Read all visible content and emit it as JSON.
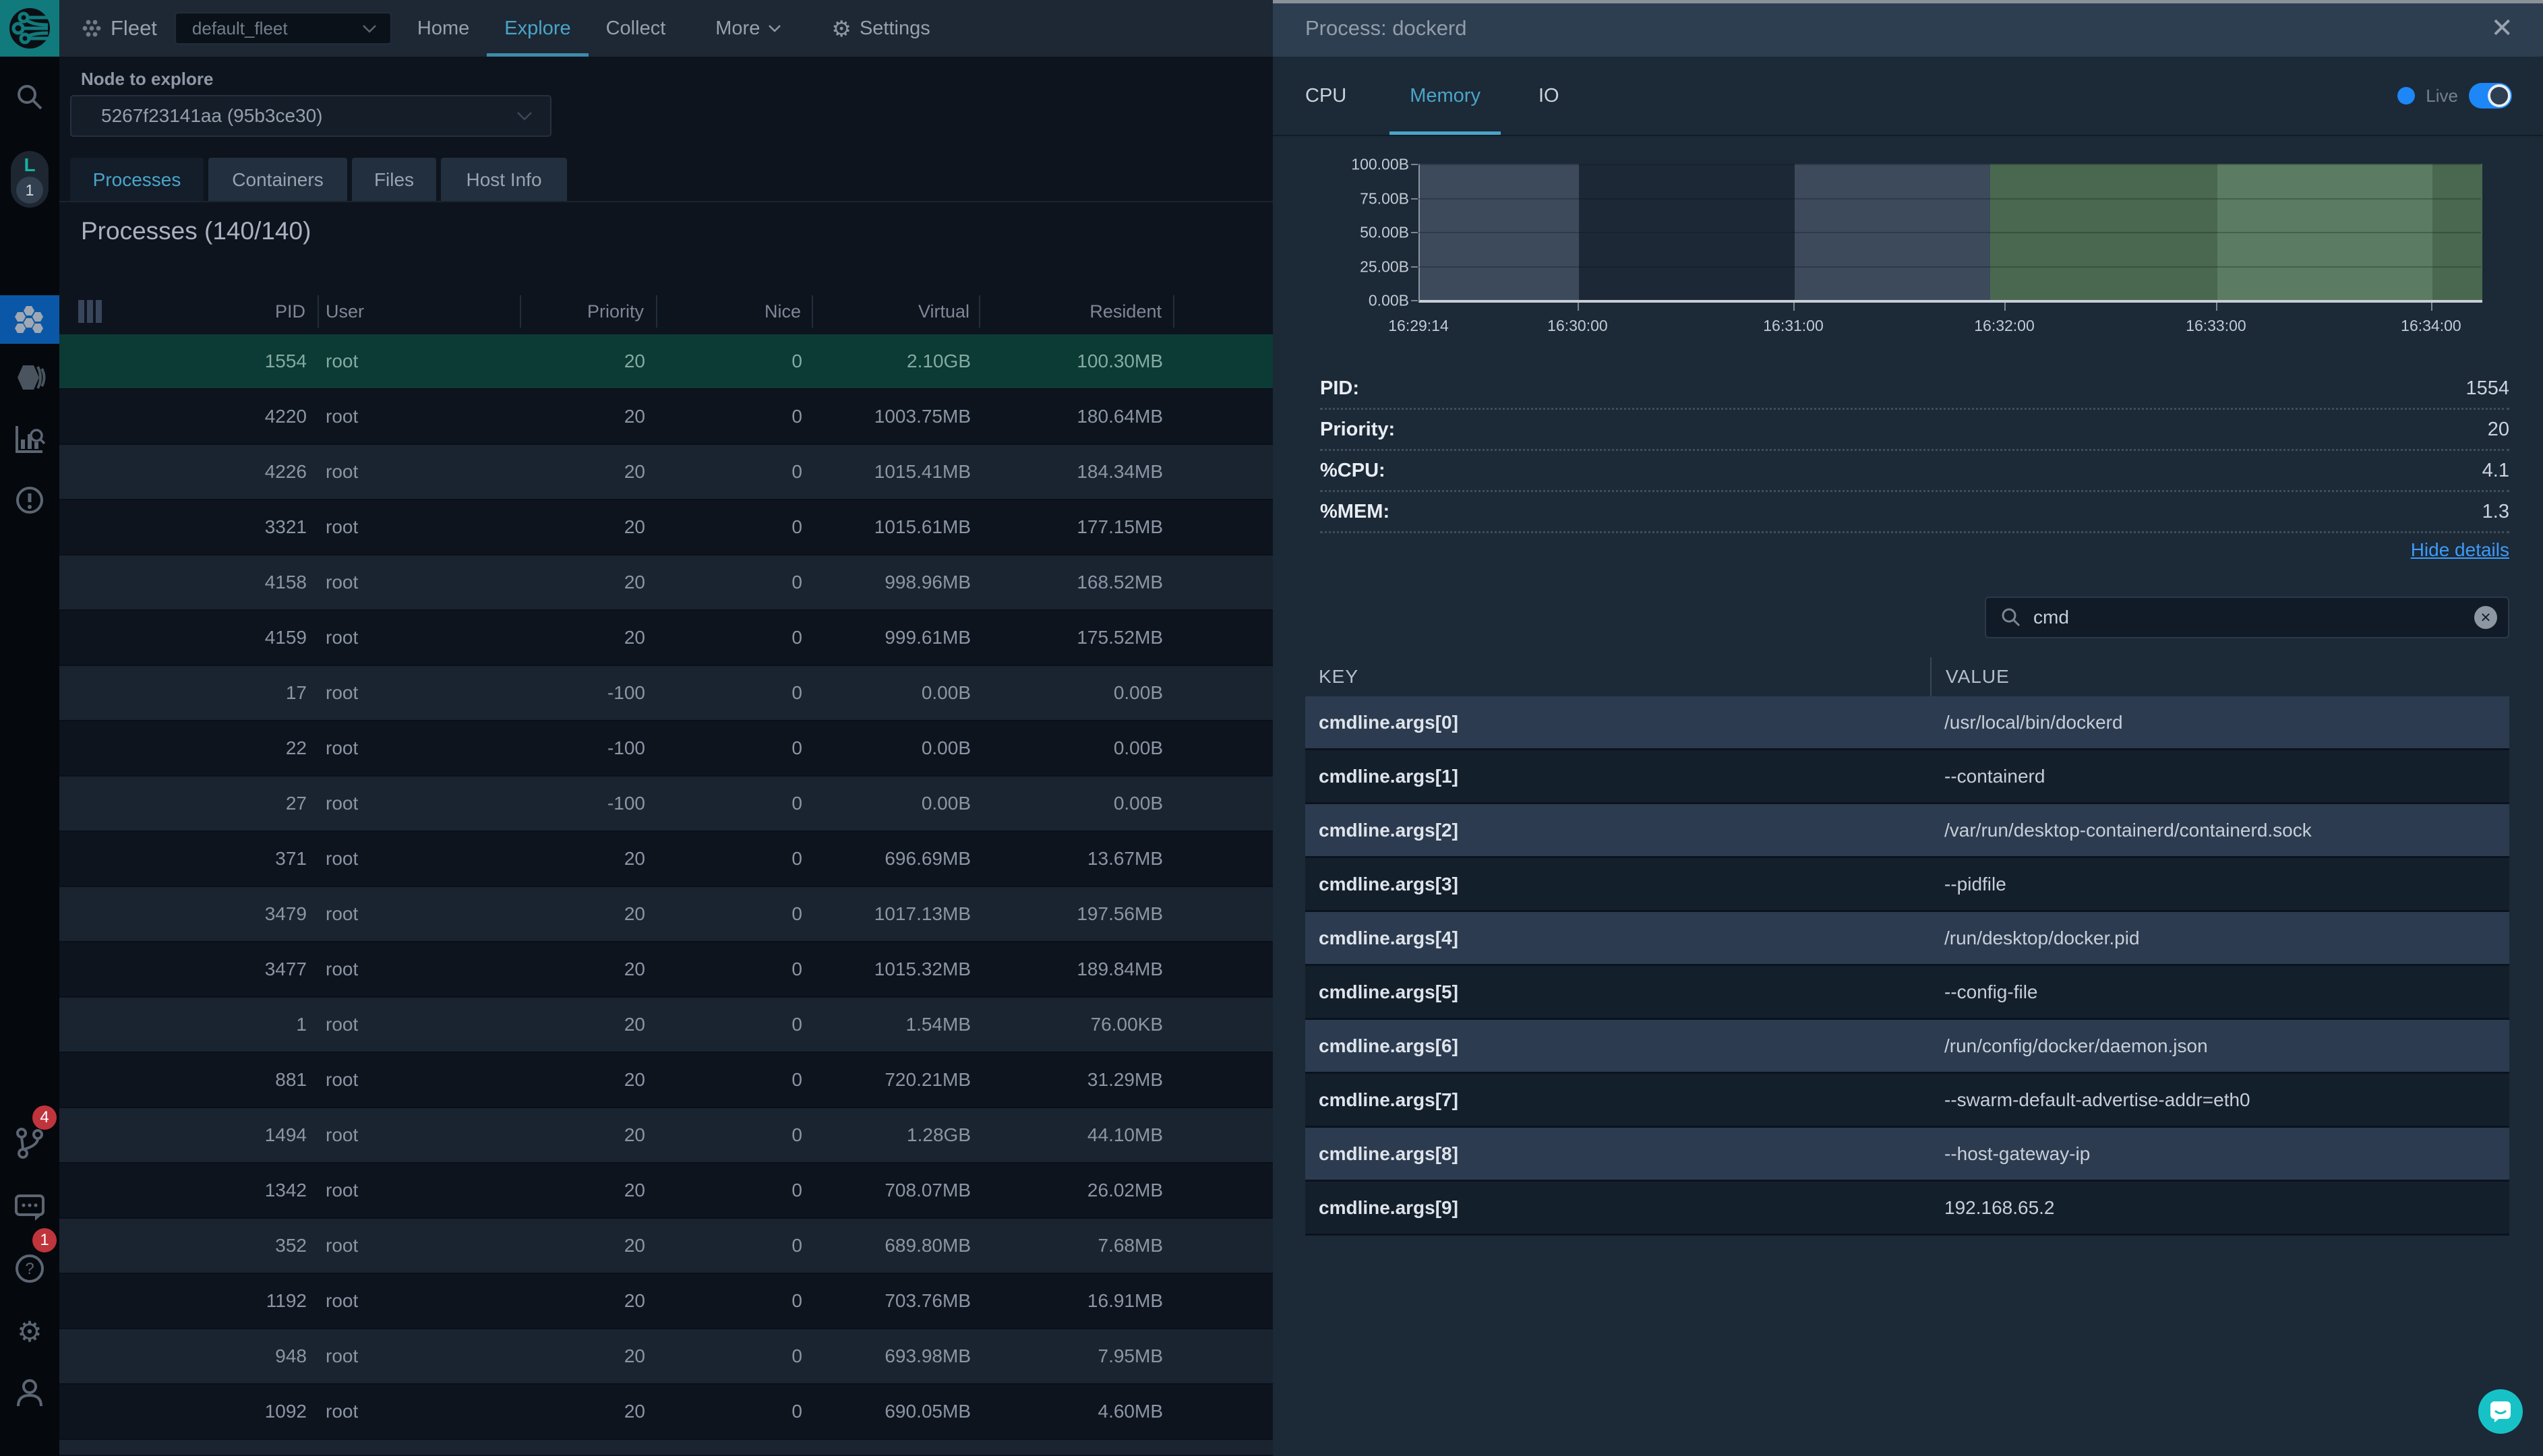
{
  "header": {
    "product": "Fleet",
    "fleet_select_value": "default_fleet",
    "nav": {
      "home": "Home",
      "explore": "Explore",
      "collect": "Collect",
      "more": "More",
      "settings": "Settings"
    }
  },
  "sidebar": {
    "avatar_letter": "L",
    "avatar_count": "1",
    "pipeline_badge": "4",
    "help_badge": "1"
  },
  "explorer": {
    "node_label": "Node to explore",
    "node_value": "5267f23141aa (95b3ce30)",
    "tabs": [
      "Processes",
      "Containers",
      "Files",
      "Host Info"
    ],
    "active_tab": "Processes",
    "title": "Processes (140/140)",
    "columns": [
      "PID",
      "User",
      "Priority",
      "Nice",
      "Virtual",
      "Resident"
    ],
    "selected_pid": "1554",
    "rows": [
      [
        "1554",
        "root",
        "20",
        "0",
        "2.10GB",
        "100.30MB"
      ],
      [
        "4220",
        "root",
        "20",
        "0",
        "1003.75MB",
        "180.64MB"
      ],
      [
        "4226",
        "root",
        "20",
        "0",
        "1015.41MB",
        "184.34MB"
      ],
      [
        "3321",
        "root",
        "20",
        "0",
        "1015.61MB",
        "177.15MB"
      ],
      [
        "4158",
        "root",
        "20",
        "0",
        "998.96MB",
        "168.52MB"
      ],
      [
        "4159",
        "root",
        "20",
        "0",
        "999.61MB",
        "175.52MB"
      ],
      [
        "17",
        "root",
        "-100",
        "0",
        "0.00B",
        "0.00B"
      ],
      [
        "22",
        "root",
        "-100",
        "0",
        "0.00B",
        "0.00B"
      ],
      [
        "27",
        "root",
        "-100",
        "0",
        "0.00B",
        "0.00B"
      ],
      [
        "371",
        "root",
        "20",
        "0",
        "696.69MB",
        "13.67MB"
      ],
      [
        "3479",
        "root",
        "20",
        "0",
        "1017.13MB",
        "197.56MB"
      ],
      [
        "3477",
        "root",
        "20",
        "0",
        "1015.32MB",
        "189.84MB"
      ],
      [
        "1",
        "root",
        "20",
        "0",
        "1.54MB",
        "76.00KB"
      ],
      [
        "881",
        "root",
        "20",
        "0",
        "720.21MB",
        "31.29MB"
      ],
      [
        "1494",
        "root",
        "20",
        "0",
        "1.28GB",
        "44.10MB"
      ],
      [
        "1342",
        "root",
        "20",
        "0",
        "708.07MB",
        "26.02MB"
      ],
      [
        "352",
        "root",
        "20",
        "0",
        "689.80MB",
        "7.68MB"
      ],
      [
        "1192",
        "root",
        "20",
        "0",
        "703.76MB",
        "16.91MB"
      ],
      [
        "948",
        "root",
        "20",
        "0",
        "693.98MB",
        "7.95MB"
      ],
      [
        "1092",
        "root",
        "20",
        "0",
        "690.05MB",
        "4.60MB"
      ]
    ]
  },
  "panel": {
    "title": "Process: dockerd",
    "tabs": [
      "CPU",
      "Memory",
      "IO"
    ],
    "active_tab": "Memory",
    "live_label": "Live",
    "chart_data": {
      "type": "area",
      "title": "dockerd memory over time",
      "ylim": [
        0,
        100
      ],
      "y_ticks": [
        "100.00B",
        "75.00B",
        "50.00B",
        "25.00B",
        "0.00B"
      ],
      "x_ticks": [
        {
          "label": "16:29:14",
          "pos_pct": 0
        },
        {
          "label": "16:30:00",
          "pos_pct": 14.97
        },
        {
          "label": "16:31:00",
          "pos_pct": 35.28
        },
        {
          "label": "16:32:00",
          "pos_pct": 55.14
        },
        {
          "label": "16:33:00",
          "pos_pct": 75.06
        },
        {
          "label": "16:34:00",
          "pos_pct": 95.3
        }
      ],
      "bands": [
        {
          "from": "16:29:14",
          "to": "16:30:00",
          "value": "100.00B",
          "color": "#3d4a5b",
          "width_pct": 14.97
        },
        {
          "from": "16:30:00",
          "to": "16:31:00",
          "value": "100.00B",
          "color": "#1d2836",
          "width_pct": 20.31
        },
        {
          "from": "16:31:00",
          "to": "16:31:55",
          "value": "100.00B",
          "color": "#3d4a5b",
          "width_pct": 18.4
        },
        {
          "from": "16:31:55",
          "to": "16:33:00",
          "value": "100.00B",
          "color": "#49684f",
          "width_pct": 21.38
        },
        {
          "from": "16:33:00",
          "to": "16:33:58",
          "value": "100.00B",
          "color": "#5b7b62",
          "width_pct": 20.24
        },
        {
          "from": "16:33:58",
          "to": "16:34:28",
          "value": "100.00B",
          "color": "#49684f",
          "width_pct": 4.7
        }
      ],
      "grid": true,
      "legend": false
    },
    "details": [
      {
        "label": "PID:",
        "value": "1554"
      },
      {
        "label": "Priority:",
        "value": "20"
      },
      {
        "label": "%CPU:",
        "value": "4.1"
      },
      {
        "label": "%MEM:",
        "value": "1.3"
      }
    ],
    "hide_details_label": "Hide details",
    "search": {
      "value": "cmd"
    },
    "kv": {
      "key_header": "KEY",
      "value_header": "VALUE",
      "rows": [
        {
          "key": "cmdline.args[0]",
          "value": "/usr/local/bin/dockerd"
        },
        {
          "key": "cmdline.args[1]",
          "value": "--containerd"
        },
        {
          "key": "cmdline.args[2]",
          "value": "/var/run/desktop-containerd/containerd.sock"
        },
        {
          "key": "cmdline.args[3]",
          "value": "--pidfile"
        },
        {
          "key": "cmdline.args[4]",
          "value": "/run/desktop/docker.pid"
        },
        {
          "key": "cmdline.args[5]",
          "value": "--config-file"
        },
        {
          "key": "cmdline.args[6]",
          "value": "/run/config/docker/daemon.json"
        },
        {
          "key": "cmdline.args[7]",
          "value": "--swarm-default-advertise-addr=eth0"
        },
        {
          "key": "cmdline.args[8]",
          "value": "--host-gateway-ip"
        },
        {
          "key": "cmdline.args[9]",
          "value": "192.168.65.2"
        }
      ]
    }
  },
  "icons": {
    "close": "✕",
    "gear": "⚙",
    "clear": "✕"
  },
  "colors": {
    "accent": "#4aa5c8",
    "logo_teal": "#117a7c",
    "selected_row": "#0c3a34",
    "live_blue": "#1e87f7",
    "link_blue": "#3d9bf7",
    "badge_red": "#c0343c",
    "fab_teal": "#17c2c7",
    "sidebar_active": "#0a57a7"
  }
}
